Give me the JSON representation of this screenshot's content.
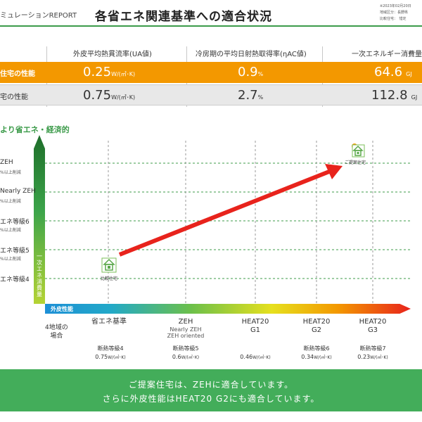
{
  "header": {
    "left": "ミュレーションREPORT",
    "title": "各省エネ関連基準への適合状況",
    "meta": [
      "※2023年02月20日",
      "地域区分：長野県",
      "比較住宅：　惜定"
    ]
  },
  "table": {
    "columns": [
      "外皮平均熱貫流率(UA値)",
      "冷房期の平均日射熱取得率(ηAC値)",
      "一次エネルギー消費量"
    ],
    "proposal": {
      "label": "住宅の性能",
      "values": [
        {
          "value": "0.25",
          "unit": "W/(㎡･K)"
        },
        {
          "value": "0.9",
          "unit": "%"
        },
        {
          "value": "64.6",
          "unit": "GJ"
        }
      ]
    },
    "comparison": {
      "label": "宅の性能",
      "values": [
        {
          "value": "0.75",
          "unit": "W/(㎡･K)"
        },
        {
          "value": "2.7",
          "unit": "%"
        },
        {
          "value": "112.8",
          "unit": "GJ"
        }
      ]
    }
  },
  "chart": {
    "title": "より省エネ・経済的",
    "y_axis_label": "一次エネ消費量",
    "y_levels": [
      {
        "label": "ZEH",
        "sub": "%以上削減"
      },
      {
        "label": "Nearly ZEH",
        "sub": "%以上削減"
      },
      {
        "label": "エネ等級6",
        "sub": "%以上削減"
      },
      {
        "label": "エネ等級5",
        "sub": "%以上削減"
      },
      {
        "label": "エネ等級4",
        "sub": ""
      }
    ],
    "x_axis_label": "外皮性能",
    "region": [
      "4地域の",
      "場合"
    ],
    "x_categories": [
      {
        "label": "省エネ基準",
        "sub": "",
        "level": "断熱等級4",
        "ua": "0.75",
        "unit": "W/(㎡･K)"
      },
      {
        "label": "ZEH",
        "sub": "Nearly ZEH\nZEH oriented",
        "level": "断熱等級5",
        "ua": "0.6",
        "unit": "W/(㎡･K)"
      },
      {
        "label": "HEAT20\nG1",
        "sub": "",
        "level": "",
        "ua": "0.46",
        "unit": "W/(㎡･K)"
      },
      {
        "label": "HEAT20\nG2",
        "sub": "",
        "level": "断熱等級6",
        "ua": "0.34",
        "unit": "W/(㎡･K)"
      },
      {
        "label": "HEAT20\nG3",
        "sub": "",
        "level": "断熱等級7",
        "ua": "0.23",
        "unit": "W/(㎡･K)"
      }
    ],
    "comparison_house_label": "比較住宅",
    "proposal_house_label": "ご提案住宅",
    "colors": {
      "green": "#3c9b4a",
      "orange": "#f39800",
      "arrow": "#e8231c"
    }
  },
  "banner": {
    "line1": "ご提案住宅は、ZEHに適合しています。",
    "line2": "さらに外皮性能はHEAT20 G2にも適合しています。"
  }
}
